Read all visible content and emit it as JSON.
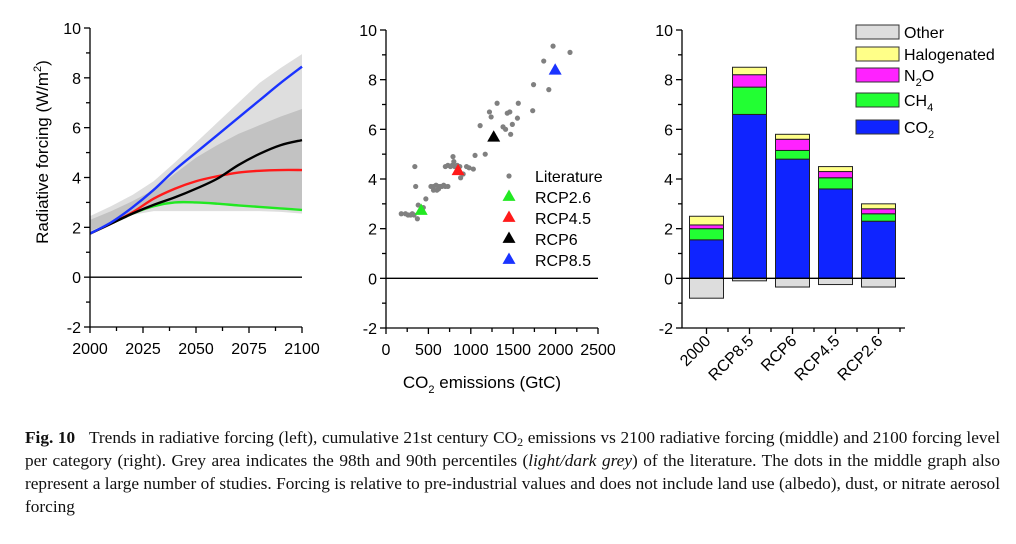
{
  "figure": {
    "caption_label": "Fig. 10",
    "caption_parts": [
      {
        "text": "Trends in radiative forcing (left), cumulative 21st century CO",
        "style": "normal"
      },
      {
        "text": "2",
        "style": "sub"
      },
      {
        "text": " emissions vs 2100 radiative forcing (middle) and 2100 forcing level per category (right). Grey area indicates the 98th and 90th percentiles (",
        "style": "normal"
      },
      {
        "text": "light/dark grey",
        "style": "italic"
      },
      {
        "text": ") of the literature. The dots in the middle graph also represent a large number of studies. Forcing is relative to pre-industrial values and does not include land use (albedo), dust, or nitrate aerosol forcing",
        "style": "normal"
      }
    ]
  },
  "colors": {
    "rcp26": "#22e822",
    "rcp45": "#ff1a1a",
    "rcp6": "#000000",
    "rcp85": "#1a33ff",
    "literature": "#808080",
    "band_light": "#dedede",
    "band_dark": "#c2c2c2",
    "other": "#dddddd",
    "halogenated": "#ffff88",
    "n2o": "#ff22ff",
    "ch4": "#22ff33",
    "co2": "#0f24ff"
  },
  "chart_data": [
    {
      "type": "line",
      "title": "",
      "xlabel": "",
      "ylabel": "Radiative forcing (W/m",
      "ylabel_sup": "2",
      "ylabel_end": ")",
      "xlim": [
        2000,
        2100
      ],
      "ylim": [
        -2,
        10
      ],
      "xticks": [
        2000,
        2025,
        2050,
        2075,
        2100
      ],
      "yticks": [
        -2,
        0,
        2,
        4,
        6,
        8,
        10
      ],
      "grid": false,
      "x": [
        2000,
        2010,
        2020,
        2030,
        2040,
        2050,
        2060,
        2070,
        2080,
        2090,
        2100
      ],
      "series": [
        {
          "name": "RCP2.6",
          "color_key": "rcp26",
          "values": [
            1.75,
            2.15,
            2.55,
            2.85,
            3.0,
            3.0,
            2.95,
            2.88,
            2.82,
            2.76,
            2.7
          ]
        },
        {
          "name": "RCP4.5",
          "color_key": "rcp45",
          "values": [
            1.75,
            2.15,
            2.6,
            3.15,
            3.55,
            3.85,
            4.05,
            4.2,
            4.27,
            4.3,
            4.3
          ]
        },
        {
          "name": "RCP6",
          "color_key": "rcp6",
          "values": [
            1.75,
            2.15,
            2.55,
            2.9,
            3.2,
            3.55,
            3.95,
            4.5,
            4.95,
            5.3,
            5.5
          ]
        },
        {
          "name": "RCP8.5",
          "color_key": "rcp85",
          "values": [
            1.75,
            2.2,
            2.8,
            3.5,
            4.3,
            5.0,
            5.7,
            6.4,
            7.1,
            7.8,
            8.45
          ]
        }
      ],
      "bands": [
        {
          "name": "98th percentile (light grey)",
          "color_key": "band_light",
          "upper": [
            2.45,
            2.85,
            3.3,
            3.85,
            4.6,
            5.4,
            6.2,
            7.0,
            7.8,
            8.4,
            8.95
          ],
          "lower": [
            1.75,
            2.1,
            2.5,
            2.65,
            2.65,
            2.65,
            2.65,
            2.65,
            2.65,
            2.62,
            2.55
          ]
        },
        {
          "name": "90th percentile (dark grey)",
          "color_key": "band_dark",
          "upper": [
            2.3,
            2.65,
            3.05,
            3.5,
            4.15,
            4.8,
            5.3,
            5.75,
            6.1,
            6.45,
            6.75
          ],
          "lower": [
            1.85,
            2.2,
            2.6,
            2.95,
            3.0,
            2.95,
            2.95,
            2.9,
            2.85,
            2.8,
            2.75
          ]
        }
      ]
    },
    {
      "type": "scatter",
      "title": "",
      "xlabel_pre": "CO",
      "xlabel_sub": "2",
      "xlabel_post": " emissions (GtC)",
      "ylabel": "",
      "xlim": [
        0,
        2500
      ],
      "ylim": [
        -2,
        10
      ],
      "xticks": [
        0,
        500,
        1000,
        1500,
        2000,
        2500
      ],
      "yticks": [
        -2,
        0,
        2,
        4,
        6,
        8,
        10
      ],
      "grid": false,
      "legend_position": "center-right",
      "literature": {
        "name": "Literature",
        "points": [
          [
            180,
            2.6
          ],
          [
            230,
            2.6
          ],
          [
            260,
            2.55
          ],
          [
            290,
            2.55
          ],
          [
            310,
            2.6
          ],
          [
            330,
            2.55
          ],
          [
            370,
            2.4
          ],
          [
            380,
            2.95
          ],
          [
            440,
            2.85
          ],
          [
            350,
            3.7
          ],
          [
            470,
            3.2
          ],
          [
            530,
            3.7
          ],
          [
            560,
            3.7
          ],
          [
            590,
            3.75
          ],
          [
            600,
            3.55
          ],
          [
            620,
            3.7
          ],
          [
            640,
            3.7
          ],
          [
            660,
            3.7
          ],
          [
            680,
            3.75
          ],
          [
            700,
            3.7
          ],
          [
            730,
            3.7
          ],
          [
            560,
            3.55
          ],
          [
            620,
            3.6
          ],
          [
            340,
            4.5
          ],
          [
            700,
            4.5
          ],
          [
            730,
            4.55
          ],
          [
            760,
            4.5
          ],
          [
            780,
            4.55
          ],
          [
            790,
            4.9
          ],
          [
            800,
            4.7
          ],
          [
            810,
            4.5
          ],
          [
            840,
            4.55
          ],
          [
            870,
            4.5
          ],
          [
            880,
            4.05
          ],
          [
            910,
            4.2
          ],
          [
            950,
            4.5
          ],
          [
            980,
            4.45
          ],
          [
            1030,
            4.4
          ],
          [
            1050,
            4.95
          ],
          [
            1170,
            5.0
          ],
          [
            1110,
            6.15
          ],
          [
            1220,
            6.7
          ],
          [
            1240,
            6.5
          ],
          [
            1310,
            7.05
          ],
          [
            1380,
            6.1
          ],
          [
            1410,
            6.0
          ],
          [
            1430,
            6.65
          ],
          [
            1460,
            6.7
          ],
          [
            1470,
            5.8
          ],
          [
            1490,
            6.2
          ],
          [
            1550,
            6.45
          ],
          [
            1560,
            7.05
          ],
          [
            1730,
            6.75
          ],
          [
            1740,
            7.8
          ],
          [
            1860,
            8.75
          ],
          [
            1920,
            7.6
          ],
          [
            1970,
            9.35
          ],
          [
            2170,
            9.1
          ]
        ]
      },
      "series": [
        {
          "name": "RCP2.6",
          "color_key": "rcp26",
          "x": 415,
          "y": 2.75
        },
        {
          "name": "RCP4.5",
          "color_key": "rcp45",
          "x": 850,
          "y": 4.35
        },
        {
          "name": "RCP6",
          "color_key": "rcp6",
          "x": 1270,
          "y": 5.7
        },
        {
          "name": "RCP8.5",
          "color_key": "rcp85",
          "x": 1995,
          "y": 8.4
        }
      ]
    },
    {
      "type": "bar",
      "stacked": true,
      "title": "",
      "ylabel": "",
      "ylim": [
        -2,
        10
      ],
      "yticks": [
        -2,
        0,
        2,
        4,
        6,
        8,
        10
      ],
      "grid": false,
      "legend_position": "top-right",
      "categories": [
        "2000",
        "RCP8.5",
        "RCP6",
        "RCP4.5",
        "RCP2.6"
      ],
      "series": [
        {
          "name": "CO2",
          "label_main": "CO",
          "label_sub": "2",
          "color_key": "co2",
          "values": [
            1.55,
            6.6,
            4.8,
            3.6,
            2.3
          ]
        },
        {
          "name": "CH4",
          "label_main": "CH",
          "label_sub": "4",
          "color_key": "ch4",
          "values": [
            0.45,
            1.1,
            0.35,
            0.45,
            0.3
          ]
        },
        {
          "name": "N2O",
          "label_main": "N",
          "label_sub": "2",
          "label_post": "O",
          "color_key": "n2o",
          "values": [
            0.15,
            0.5,
            0.45,
            0.25,
            0.2
          ]
        },
        {
          "name": "Halogenated",
          "label_main": "Halogenated",
          "color_key": "halogenated",
          "values": [
            0.35,
            0.3,
            0.2,
            0.2,
            0.2
          ]
        },
        {
          "name": "Other",
          "label_main": "Other",
          "color_key": "other",
          "values": [
            -0.8,
            -0.1,
            -0.35,
            -0.25,
            -0.35
          ]
        }
      ]
    }
  ]
}
